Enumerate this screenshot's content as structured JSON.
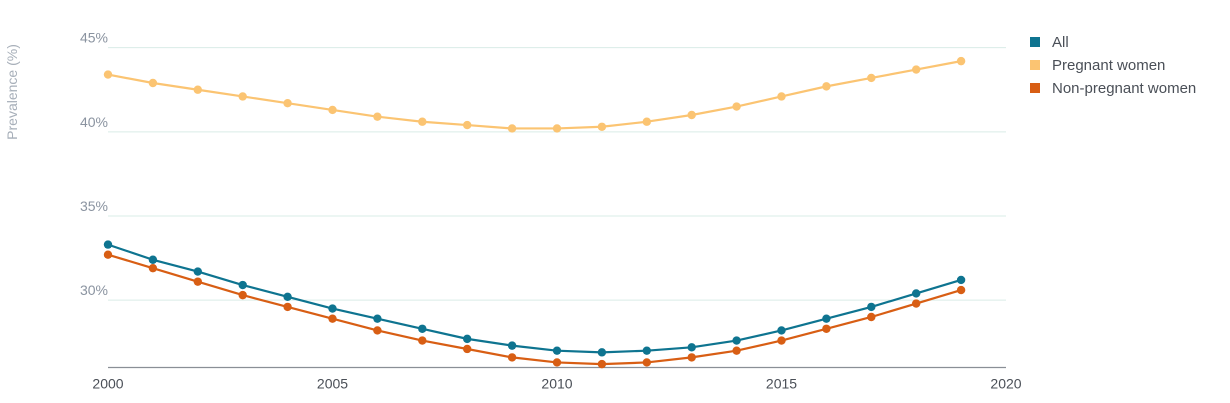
{
  "chart_data": {
    "type": "line",
    "ylabel": "Prevalence (%)",
    "xlabel": "",
    "xlim": [
      2000,
      2020
    ],
    "ylim": [
      26,
      46.5
    ],
    "x_ticks": [
      "2000",
      "2005",
      "2010",
      "2015",
      "2020"
    ],
    "y_ticks": [
      {
        "value": 30,
        "label": "30%"
      },
      {
        "value": 35,
        "label": "35%"
      },
      {
        "value": 40,
        "label": "40%"
      },
      {
        "value": 45,
        "label": "45%"
      }
    ],
    "grid": true,
    "legend_position": "top-right",
    "x": [
      2000,
      2001,
      2002,
      2003,
      2004,
      2005,
      2006,
      2007,
      2008,
      2009,
      2010,
      2011,
      2012,
      2013,
      2014,
      2015,
      2016,
      2017,
      2018,
      2019
    ],
    "series": [
      {
        "name": "All",
        "color": "#0e7490",
        "values": [
          33.3,
          32.4,
          31.7,
          30.9,
          30.2,
          29.5,
          28.9,
          28.3,
          27.7,
          27.3,
          27.0,
          26.9,
          27.0,
          27.2,
          27.6,
          28.2,
          28.9,
          29.6,
          30.4,
          31.2
        ]
      },
      {
        "name": "Pregnant women",
        "color": "#fbc472",
        "values": [
          43.4,
          42.9,
          42.5,
          42.1,
          41.7,
          41.3,
          40.9,
          40.6,
          40.4,
          40.2,
          40.2,
          40.3,
          40.6,
          41.0,
          41.5,
          42.1,
          42.7,
          43.2,
          43.7,
          44.2
        ]
      },
      {
        "name": "Non-pregnant women",
        "color": "#d85e14",
        "values": [
          32.7,
          31.9,
          31.1,
          30.3,
          29.6,
          28.9,
          28.2,
          27.6,
          27.1,
          26.6,
          26.3,
          26.2,
          26.3,
          26.6,
          27.0,
          27.6,
          28.3,
          29.0,
          29.8,
          30.6
        ]
      }
    ]
  }
}
